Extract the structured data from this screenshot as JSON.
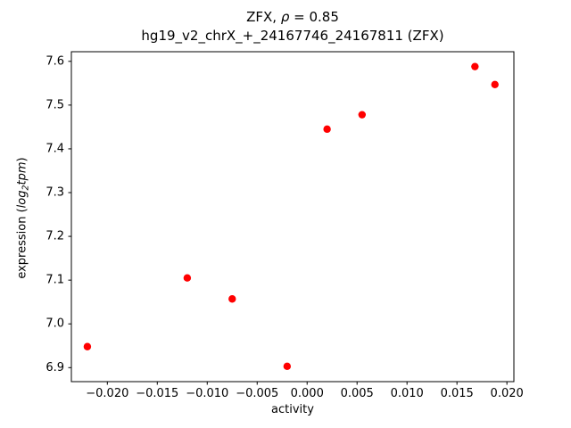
{
  "title_line1": {
    "prefix": "ZFX, ",
    "rho": "ρ",
    "suffix": " = 0.85"
  },
  "title_line2": "hg19_v2_chrX_+_24167746_24167811 (ZFX)",
  "chart_data": {
    "type": "scatter",
    "title": "ZFX, ρ = 0.85\nhg19_v2_chrX_+_24167746_24167811 (ZFX)",
    "xlabel": "activity",
    "ylabel": "expression (log2tpm)",
    "ylabel_parts": {
      "prefix": "expression (",
      "italic1": "log",
      "sub": "2",
      "italic2": "tpm",
      "suffix": ")"
    },
    "marker_color": "#ff0000",
    "axis_color": "#000000",
    "xlim": [
      -0.0236,
      0.0207
    ],
    "ylim": [
      6.868,
      7.622
    ],
    "grid": false,
    "legend": "none",
    "x_ticks": [
      {
        "v": -0.02,
        "label": "−0.020"
      },
      {
        "v": -0.015,
        "label": "−0.015"
      },
      {
        "v": -0.01,
        "label": "−0.010"
      },
      {
        "v": -0.005,
        "label": "−0.005"
      },
      {
        "v": 0.0,
        "label": "0.000"
      },
      {
        "v": 0.005,
        "label": "0.005"
      },
      {
        "v": 0.01,
        "label": "0.010"
      },
      {
        "v": 0.015,
        "label": "0.015"
      },
      {
        "v": 0.02,
        "label": "0.020"
      }
    ],
    "y_ticks": [
      {
        "v": 6.9,
        "label": "6.9"
      },
      {
        "v": 7.0,
        "label": "7.0"
      },
      {
        "v": 7.1,
        "label": "7.1"
      },
      {
        "v": 7.2,
        "label": "7.2"
      },
      {
        "v": 7.3,
        "label": "7.3"
      },
      {
        "v": 7.4,
        "label": "7.4"
      },
      {
        "v": 7.5,
        "label": "7.5"
      },
      {
        "v": 7.6,
        "label": "7.6"
      }
    ],
    "points": [
      {
        "x": -0.022,
        "y": 6.948
      },
      {
        "x": -0.012,
        "y": 7.105
      },
      {
        "x": -0.0075,
        "y": 7.057
      },
      {
        "x": -0.002,
        "y": 6.903
      },
      {
        "x": 0.002,
        "y": 7.445
      },
      {
        "x": 0.0055,
        "y": 7.478
      },
      {
        "x": 0.0168,
        "y": 7.588
      },
      {
        "x": 0.0188,
        "y": 7.547
      }
    ]
  }
}
